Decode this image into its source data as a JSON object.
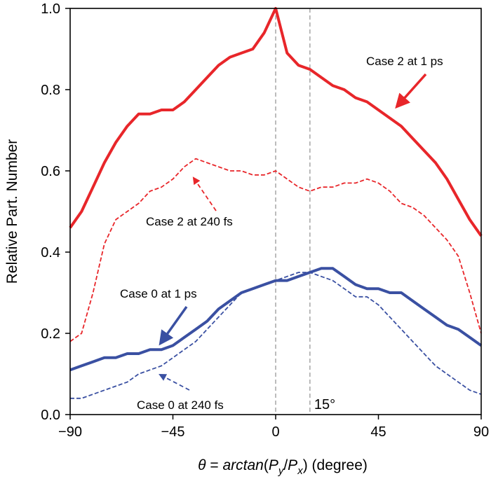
{
  "chart_data": {
    "type": "line",
    "xlabel": "θ = arctan(P_y/P_x) (degree)",
    "ylabel": "Relative Part. Number",
    "xlim": [
      -90,
      90
    ],
    "ylim": [
      0.0,
      1.0
    ],
    "xticks": [
      -90,
      -45,
      0,
      45,
      90
    ],
    "xtick_labels": [
      "−90",
      "−45",
      "0",
      "45",
      "90"
    ],
    "yticks": [
      0.0,
      0.2,
      0.4,
      0.6,
      0.8,
      1.0
    ],
    "ytick_labels": [
      "0.0",
      "0.2",
      "0.4",
      "0.6",
      "0.8",
      "1.0"
    ],
    "grid": false,
    "reference_lines": [
      {
        "x": 0,
        "style": "dashed",
        "color": "#a6a6a6"
      },
      {
        "x": 15,
        "style": "dashed",
        "color": "#a6a6a6",
        "label": "15°"
      }
    ],
    "series": [
      {
        "name": "Case 2 at 1 ps",
        "color": "#e8262a",
        "style": "solid",
        "x": [
          -90,
          -85,
          -80,
          -75,
          -70,
          -65,
          -60,
          -55,
          -50,
          -45,
          -40,
          -35,
          -30,
          -25,
          -20,
          -15,
          -10,
          -5,
          0,
          5,
          10,
          15,
          20,
          25,
          30,
          35,
          40,
          45,
          50,
          55,
          60,
          65,
          70,
          75,
          80,
          85,
          90
        ],
        "values": [
          0.46,
          0.5,
          0.56,
          0.62,
          0.67,
          0.71,
          0.74,
          0.74,
          0.75,
          0.75,
          0.77,
          0.8,
          0.83,
          0.86,
          0.88,
          0.89,
          0.9,
          0.94,
          1.0,
          0.89,
          0.86,
          0.85,
          0.83,
          0.81,
          0.8,
          0.78,
          0.77,
          0.75,
          0.73,
          0.71,
          0.68,
          0.65,
          0.62,
          0.58,
          0.53,
          0.48,
          0.44
        ]
      },
      {
        "name": "Case 2 at 240 fs",
        "color": "#e8262a",
        "style": "dashed",
        "x": [
          -90,
          -85,
          -80,
          -75,
          -70,
          -65,
          -60,
          -55,
          -50,
          -45,
          -40,
          -35,
          -30,
          -25,
          -20,
          -15,
          -10,
          -5,
          0,
          5,
          10,
          15,
          20,
          25,
          30,
          35,
          40,
          45,
          50,
          55,
          60,
          65,
          70,
          75,
          80,
          85,
          90
        ],
        "values": [
          0.18,
          0.2,
          0.3,
          0.42,
          0.48,
          0.5,
          0.52,
          0.55,
          0.56,
          0.58,
          0.61,
          0.63,
          0.62,
          0.61,
          0.6,
          0.6,
          0.59,
          0.59,
          0.6,
          0.58,
          0.56,
          0.55,
          0.56,
          0.56,
          0.57,
          0.57,
          0.58,
          0.57,
          0.55,
          0.52,
          0.51,
          0.49,
          0.46,
          0.43,
          0.39,
          0.3,
          0.2
        ]
      },
      {
        "name": "Case 0 at 1 ps",
        "color": "#3a50a2",
        "style": "solid",
        "x": [
          -90,
          -85,
          -80,
          -75,
          -70,
          -65,
          -60,
          -55,
          -50,
          -45,
          -40,
          -35,
          -30,
          -25,
          -20,
          -15,
          -10,
          -5,
          0,
          5,
          10,
          15,
          20,
          25,
          30,
          35,
          40,
          45,
          50,
          55,
          60,
          65,
          70,
          75,
          80,
          85,
          90
        ],
        "values": [
          0.11,
          0.12,
          0.13,
          0.14,
          0.14,
          0.15,
          0.15,
          0.16,
          0.16,
          0.17,
          0.19,
          0.21,
          0.23,
          0.26,
          0.28,
          0.3,
          0.31,
          0.32,
          0.33,
          0.33,
          0.34,
          0.35,
          0.36,
          0.36,
          0.34,
          0.32,
          0.31,
          0.31,
          0.3,
          0.3,
          0.28,
          0.26,
          0.24,
          0.22,
          0.21,
          0.19,
          0.17
        ]
      },
      {
        "name": "Case 0 at 240 fs",
        "color": "#3a50a2",
        "style": "dashed",
        "x": [
          -90,
          -85,
          -80,
          -75,
          -70,
          -65,
          -60,
          -55,
          -50,
          -45,
          -40,
          -35,
          -30,
          -25,
          -20,
          -15,
          -10,
          -5,
          0,
          5,
          10,
          15,
          20,
          25,
          30,
          35,
          40,
          45,
          50,
          55,
          60,
          65,
          70,
          75,
          80,
          85,
          90
        ],
        "values": [
          0.04,
          0.04,
          0.05,
          0.06,
          0.07,
          0.08,
          0.1,
          0.11,
          0.12,
          0.14,
          0.16,
          0.18,
          0.21,
          0.24,
          0.27,
          0.3,
          0.31,
          0.32,
          0.33,
          0.34,
          0.35,
          0.35,
          0.34,
          0.33,
          0.31,
          0.29,
          0.29,
          0.27,
          0.24,
          0.21,
          0.18,
          0.15,
          0.12,
          0.1,
          0.08,
          0.06,
          0.05
        ]
      }
    ],
    "annotations": [
      {
        "text": "Case 2 at 1 ps",
        "target": "Case 2 at 1 ps",
        "arrow": "solid",
        "color": "#e8262a"
      },
      {
        "text": "Case 2 at 240 fs",
        "target": "Case 2 at 240 fs",
        "arrow": "dashed",
        "color": "#e8262a"
      },
      {
        "text": "Case 0 at 1 ps",
        "target": "Case 0 at 1 ps",
        "arrow": "solid",
        "color": "#3a50a2"
      },
      {
        "text": "Case 0 at 240 fs",
        "target": "Case 0 at 240 fs",
        "arrow": "dashed",
        "color": "#3a50a2"
      }
    ]
  }
}
